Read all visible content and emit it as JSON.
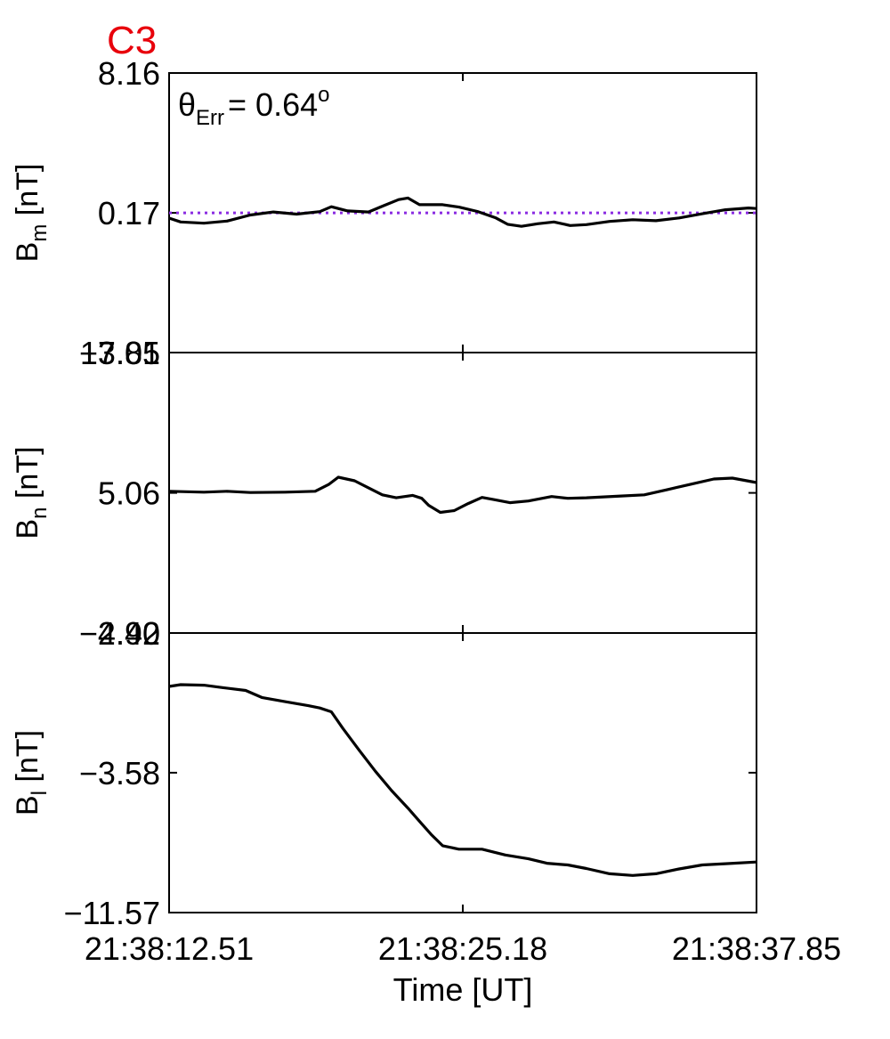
{
  "figure": {
    "title": "C3",
    "title_color": "#e8000b",
    "annotation_theta": "θ",
    "annotation_sub": "Err",
    "annotation_value": "=  0.64",
    "annotation_degree": "o",
    "xlabel": "Time [UT]"
  },
  "chart_data": {
    "type": "line",
    "x_ticks": [
      "21:38:12.51",
      "21:38:25.18",
      "21:38:37.85"
    ],
    "x_range": [
      0,
      25.34
    ],
    "xlabel": "Time [UT]",
    "panels": [
      {
        "ylabel_main": "B",
        "ylabel_sub": "m",
        "ylabel_rest": " [nT]",
        "yticks": [
          "8.16",
          "0.17",
          "−7.81"
        ],
        "ytick_values": [
          8.16,
          0.17,
          -7.81
        ],
        "ylim": [
          -7.81,
          8.16
        ],
        "reference_line": {
          "value": 0.17,
          "style": "dotted",
          "color": "#8a2be2"
        },
        "series": [
          {
            "color": "#000000",
            "points": [
              [
                0,
                -0.13
              ],
              [
                0.5,
                -0.35
              ],
              [
                1.5,
                -0.42
              ],
              [
                2.5,
                -0.3
              ],
              [
                3.5,
                0.05
              ],
              [
                4.5,
                0.22
              ],
              [
                5.5,
                0.1
              ],
              [
                6.5,
                0.24
              ],
              [
                7.0,
                0.52
              ],
              [
                7.7,
                0.28
              ],
              [
                8.6,
                0.22
              ],
              [
                9.2,
                0.55
              ],
              [
                9.9,
                0.93
              ],
              [
                10.3,
                1.02
              ],
              [
                10.8,
                0.64
              ],
              [
                11.8,
                0.64
              ],
              [
                12.5,
                0.5
              ],
              [
                13.3,
                0.25
              ],
              [
                14.1,
                -0.12
              ],
              [
                14.6,
                -0.48
              ],
              [
                15.2,
                -0.6
              ],
              [
                15.9,
                -0.45
              ],
              [
                16.6,
                -0.35
              ],
              [
                17.3,
                -0.55
              ],
              [
                18.0,
                -0.5
              ],
              [
                19.0,
                -0.32
              ],
              [
                20.0,
                -0.22
              ],
              [
                21.0,
                -0.28
              ],
              [
                22.0,
                -0.12
              ],
              [
                23.0,
                0.12
              ],
              [
                24.0,
                0.35
              ],
              [
                25.0,
                0.45
              ],
              [
                25.34,
                0.42
              ]
            ]
          }
        ]
      },
      {
        "ylabel_main": "B",
        "ylabel_sub": "n",
        "ylabel_rest": " [nT]",
        "yticks": [
          "13.05",
          "5.06",
          "−2.92"
        ],
        "ytick_values": [
          13.05,
          5.06,
          -2.92
        ],
        "ylim": [
          -2.92,
          13.05
        ],
        "series": [
          {
            "color": "#000000",
            "points": [
              [
                0,
                5.15
              ],
              [
                1.5,
                5.1
              ],
              [
                2.5,
                5.15
              ],
              [
                3.5,
                5.08
              ],
              [
                5.0,
                5.1
              ],
              [
                6.3,
                5.15
              ],
              [
                6.9,
                5.55
              ],
              [
                7.3,
                5.95
              ],
              [
                8.0,
                5.75
              ],
              [
                8.6,
                5.35
              ],
              [
                9.2,
                4.95
              ],
              [
                9.8,
                4.78
              ],
              [
                10.5,
                4.92
              ],
              [
                10.9,
                4.75
              ],
              [
                11.2,
                4.35
              ],
              [
                11.7,
                3.95
              ],
              [
                12.3,
                4.05
              ],
              [
                12.9,
                4.45
              ],
              [
                13.5,
                4.8
              ],
              [
                14.0,
                4.68
              ],
              [
                14.7,
                4.5
              ],
              [
                15.5,
                4.6
              ],
              [
                16.5,
                4.85
              ],
              [
                17.2,
                4.75
              ],
              [
                18.0,
                4.78
              ],
              [
                19.5,
                4.88
              ],
              [
                20.5,
                4.95
              ],
              [
                21.5,
                5.25
              ],
              [
                22.5,
                5.55
              ],
              [
                23.5,
                5.85
              ],
              [
                24.3,
                5.9
              ],
              [
                25.34,
                5.65
              ]
            ]
          }
        ]
      },
      {
        "ylabel_main": "B",
        "ylabel_sub": "l",
        "ylabel_rest": " [nT]",
        "yticks": [
          "4.40",
          "−3.58",
          "−11.57"
        ],
        "ytick_values": [
          4.4,
          -3.58,
          -11.57
        ],
        "ylim": [
          -11.57,
          4.4
        ],
        "series": [
          {
            "color": "#000000",
            "points": [
              [
                0,
                1.35
              ],
              [
                0.5,
                1.45
              ],
              [
                1.5,
                1.42
              ],
              [
                2.3,
                1.28
              ],
              [
                3.3,
                1.12
              ],
              [
                4.0,
                0.72
              ],
              [
                5.0,
                0.48
              ],
              [
                6.0,
                0.25
              ],
              [
                6.5,
                0.12
              ],
              [
                7.0,
                -0.1
              ],
              [
                7.5,
                -1.05
              ],
              [
                8.2,
                -2.3
              ],
              [
                8.9,
                -3.5
              ],
              [
                9.6,
                -4.6
              ],
              [
                10.3,
                -5.6
              ],
              [
                10.8,
                -6.35
              ],
              [
                11.3,
                -7.1
              ],
              [
                11.8,
                -7.75
              ],
              [
                12.5,
                -7.95
              ],
              [
                13.5,
                -7.95
              ],
              [
                14.5,
                -8.28
              ],
              [
                15.5,
                -8.5
              ],
              [
                16.3,
                -8.75
              ],
              [
                17.2,
                -8.85
              ],
              [
                18.0,
                -9.05
              ],
              [
                19.0,
                -9.35
              ],
              [
                20.0,
                -9.45
              ],
              [
                21.0,
                -9.35
              ],
              [
                22.0,
                -9.08
              ],
              [
                23.0,
                -8.85
              ],
              [
                24.0,
                -8.78
              ],
              [
                25.34,
                -8.68
              ]
            ]
          }
        ]
      }
    ]
  }
}
